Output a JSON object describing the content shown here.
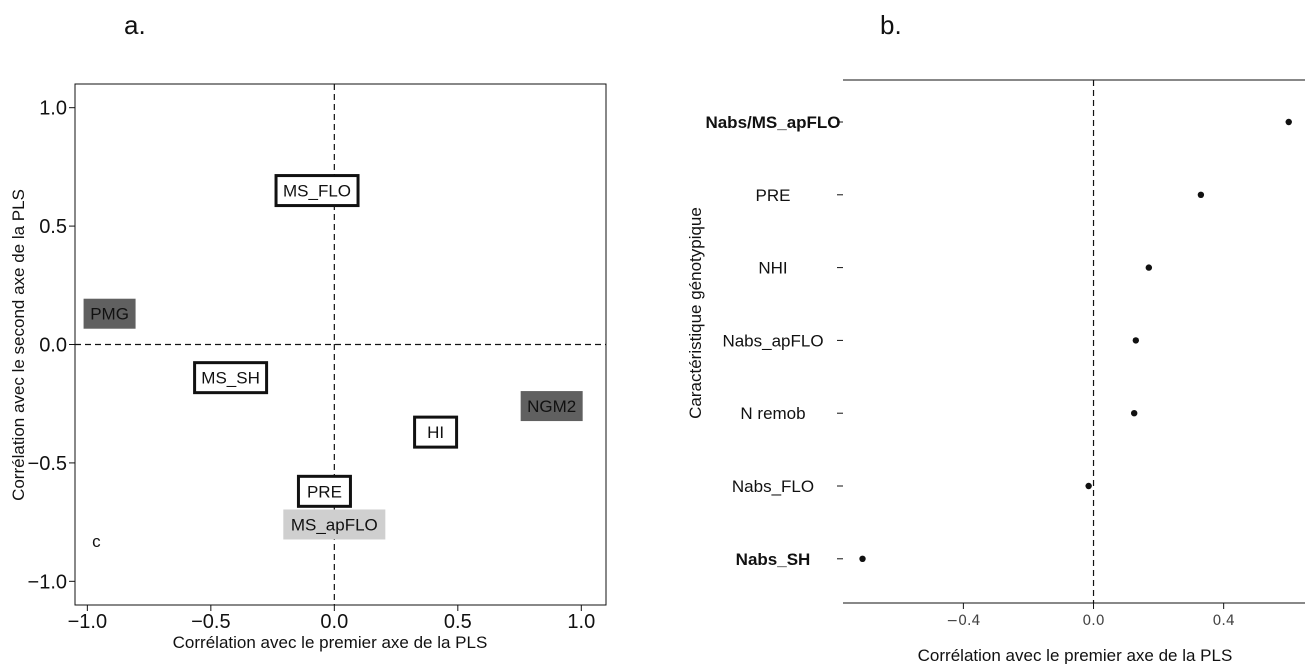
{
  "chart_data": [
    {
      "panel": "a.",
      "type": "scatter",
      "xlabel": "Corrélation avec le premier axe de la PLS",
      "ylabel": "Corrélation avec le second axe de la PLS",
      "xlim": [
        -1.05,
        1.1
      ],
      "ylim": [
        -1.1,
        1.1
      ],
      "xticks": [
        -1.0,
        -0.5,
        0.0,
        0.5,
        1.0
      ],
      "yticks": [
        -1.0,
        -0.5,
        0.0,
        0.5,
        1.0
      ],
      "xtick_labels": [
        "−1.0",
        "−0.5",
        "0.0",
        "0.5",
        "1.0"
      ],
      "ytick_labels": [
        "−1.0",
        "−0.5",
        "0.0",
        "0.5",
        "1.0"
      ],
      "points": [
        {
          "label": "MS_FLO",
          "x": -0.07,
          "y": 0.65,
          "style": "outlined"
        },
        {
          "label": "PMG",
          "x": -0.91,
          "y": 0.13,
          "style": "dark"
        },
        {
          "label": "MS_SH",
          "x": -0.42,
          "y": -0.14,
          "style": "outlined"
        },
        {
          "label": "NGM2",
          "x": 0.88,
          "y": -0.26,
          "style": "dark"
        },
        {
          "label": "HI",
          "x": 0.41,
          "y": -0.37,
          "style": "outlined"
        },
        {
          "label": "PRE",
          "x": -0.04,
          "y": -0.62,
          "style": "outlined"
        },
        {
          "label": "MS_apFLO",
          "x": 0.0,
          "y": -0.76,
          "style": "light"
        },
        {
          "label": "c",
          "x": -1.0,
          "y": -0.83,
          "style": "text"
        }
      ]
    },
    {
      "panel": "b.",
      "type": "scatter",
      "xlabel": "Corrélation avec le premier axe de la PLS",
      "ylabel": "Caractéristique génotypique",
      "xlim": [
        -0.77,
        0.65
      ],
      "xticks": [
        -0.4,
        0.0,
        0.4
      ],
      "xtick_labels": [
        "−0.4",
        "0.0",
        "0.4"
      ],
      "categories": [
        "Nabs/MS_apFLO",
        "PRE",
        "NHI",
        "Nabs_apFLO",
        "N remob",
        "Nabs_FLO",
        "Nabs_SH"
      ],
      "bold_categories": [
        "Nabs/MS_apFLO",
        "Nabs_SH"
      ],
      "values": [
        0.6,
        0.33,
        0.17,
        0.13,
        0.125,
        -0.015,
        -0.71
      ]
    }
  ]
}
